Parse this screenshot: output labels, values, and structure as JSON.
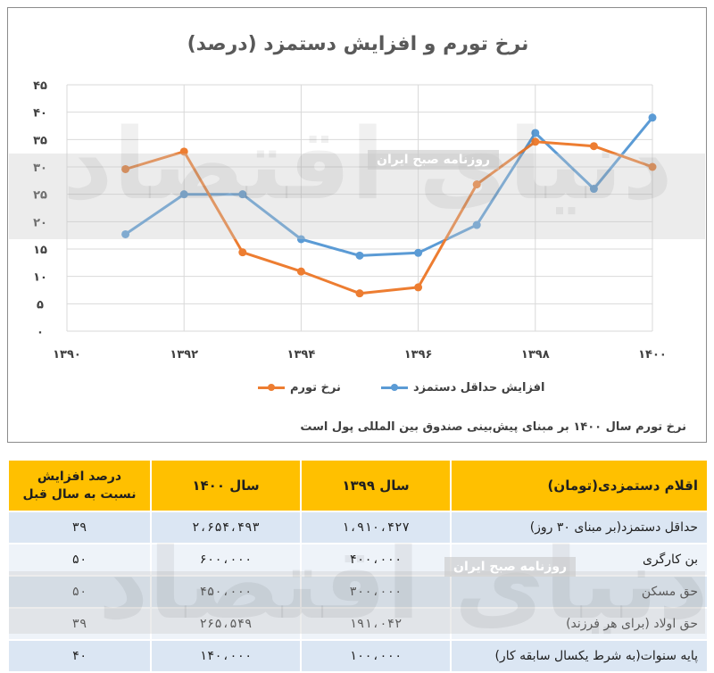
{
  "chart_data": {
    "type": "line",
    "title": "نرخ تورم و افزایش دستمزد (درصد)",
    "x": [
      1390,
      1391,
      1392,
      1393,
      1394,
      1395,
      1396,
      1397,
      1398,
      1399,
      1400
    ],
    "xticks": [
      1390,
      1392,
      1394,
      1396,
      1398,
      1400
    ],
    "xtick_labels": [
      "۱۳۹۰",
      "۱۳۹۲",
      "۱۳۹۴",
      "۱۳۹۶",
      "۱۳۹۸",
      "۱۴۰۰"
    ],
    "xlim": [
      1390,
      1400
    ],
    "ylim": [
      0,
      45
    ],
    "yticks": [
      0,
      5,
      10,
      15,
      20,
      25,
      30,
      35,
      40,
      45
    ],
    "ytick_labels": [
      "۰",
      "۵",
      "۱۰",
      "۱۵",
      "۲۰",
      "۲۵",
      "۳۰",
      "۳۵",
      "۴۰",
      "۴۵"
    ],
    "grid": true,
    "legend_position": "bottom",
    "series": [
      {
        "name": "افزایش حداقل دستمزد",
        "color": "#5b9bd5",
        "x": [
          1391,
          1392,
          1393,
          1394,
          1395,
          1396,
          1397,
          1398,
          1399,
          1400
        ],
        "values": [
          17.7,
          25,
          25,
          16.8,
          13.8,
          14.3,
          19.4,
          36.2,
          26,
          39
        ]
      },
      {
        "name": "نرخ تورم",
        "color": "#ed7d31",
        "x": [
          1391,
          1392,
          1393,
          1394,
          1395,
          1396,
          1397,
          1398,
          1399,
          1400
        ],
        "values": [
          29.6,
          32.8,
          14.4,
          10.9,
          6.9,
          8.0,
          26.8,
          34.6,
          33.8,
          30
        ]
      }
    ],
    "footnote": "نرخ تورم سال ۱۴۰۰ بر مبنای پیش‌بینی صندوق بین المللی پول است"
  },
  "table": {
    "headers": [
      "اقلام دستمزدی(تومان)",
      "سال ۱۳۹۹",
      "سال ۱۴۰۰",
      "درصد افزایش نسبت به سال قبل"
    ],
    "rows": [
      [
        "حداقل دستمزد(بر مبنای ۳۰ روز)",
        "۱،۹۱۰،۴۲۷",
        "۲،۶۵۴،۴۹۳",
        "۳۹"
      ],
      [
        "بن کارگری",
        "۴۰۰،۰۰۰",
        "۶۰۰،۰۰۰",
        "۵۰"
      ],
      [
        "حق مسکن",
        "۳۰۰،۰۰۰",
        "۴۵۰،۰۰۰",
        "۵۰"
      ],
      [
        "حق اولاد (برای هر فرزند)",
        "۱۹۱،۰۴۲",
        "۲۶۵،۵۴۹",
        "۳۹"
      ],
      [
        "پایه سنوات(به شرط یکسال سابقه کار)",
        "۱۰۰،۰۰۰",
        "۱۴۰،۰۰۰",
        "۴۰"
      ]
    ]
  },
  "watermark": {
    "main": "دنیای اقتصاد",
    "small": "روزنامه صبح ایران"
  }
}
